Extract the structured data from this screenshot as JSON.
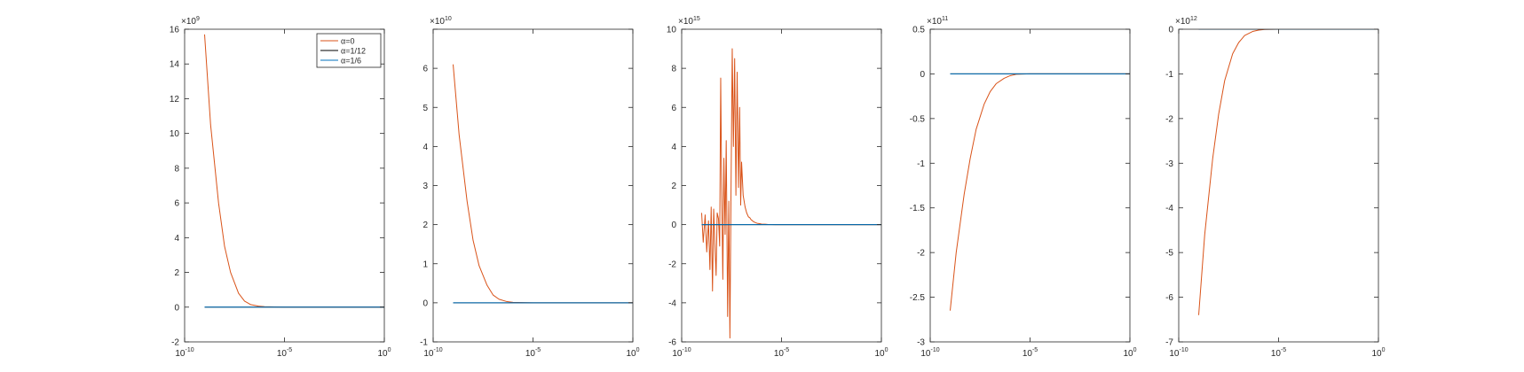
{
  "colors": {
    "axis": "#262626",
    "alpha0": "#D95319",
    "alpha1_12": "#000000",
    "alpha1_6": "#0072BD"
  },
  "chart_data": [
    {
      "type": "line",
      "xscale": "log",
      "xlim": [
        1e-10,
        1
      ],
      "xticks": [
        1e-10,
        1e-05,
        1
      ],
      "xtick_labels": [
        {
          "base": "10",
          "exp": "-10"
        },
        {
          "base": "10",
          "exp": "-5"
        },
        {
          "base": "10",
          "exp": "0"
        }
      ],
      "ylim": [
        -2,
        16
      ],
      "yticks": [
        -2,
        0,
        2,
        4,
        6,
        8,
        10,
        12,
        14,
        16
      ],
      "ytick_labels": [
        "-2",
        "0",
        "2",
        "4",
        "6",
        "8",
        "10",
        "12",
        "14",
        "16"
      ],
      "multiplier": {
        "prefix": "×",
        "base": "10",
        "exp": "9"
      },
      "legend": {
        "placement": "top-right",
        "entries": [
          "α=0",
          "α=1/12",
          "α=1/6"
        ]
      },
      "series": [
        {
          "name": "α=0",
          "color_key": "alpha0",
          "x": [
            1e-09,
            2e-09,
            5e-09,
            1e-08,
            2e-08,
            5e-08,
            1e-07,
            2e-07,
            5e-07,
            1e-06,
            1e-05,
            0.001,
            1
          ],
          "y": [
            15.7,
            10.5,
            6.0,
            3.5,
            2.0,
            0.8,
            0.35,
            0.15,
            0.06,
            0.03,
            0,
            0,
            0
          ]
        },
        {
          "name": "α=1/12",
          "color_key": "alpha1_12",
          "x": [
            1e-09,
            1
          ],
          "y": [
            0,
            0
          ]
        },
        {
          "name": "α=1/6",
          "color_key": "alpha1_6",
          "x": [
            1e-09,
            1
          ],
          "y": [
            0,
            0
          ]
        }
      ]
    },
    {
      "type": "line",
      "xscale": "log",
      "xlim": [
        1e-10,
        1
      ],
      "xticks": [
        1e-10,
        1e-05,
        1
      ],
      "xtick_labels": [
        {
          "base": "10",
          "exp": "-10"
        },
        {
          "base": "10",
          "exp": "-5"
        },
        {
          "base": "10",
          "exp": "0"
        }
      ],
      "ylim": [
        -1,
        7
      ],
      "yticks": [
        -1,
        0,
        1,
        2,
        3,
        4,
        5,
        6,
        7
      ],
      "ytick_labels": [
        "-1",
        "0",
        "1",
        "2",
        "3",
        "4",
        "5",
        "6",
        ""
      ],
      "multiplier": {
        "prefix": "×",
        "base": "10",
        "exp": "10"
      },
      "series": [
        {
          "name": "α=0",
          "color_key": "alpha0",
          "x": [
            1e-09,
            2e-09,
            5e-09,
            1e-08,
            2e-08,
            5e-08,
            1e-07,
            2e-07,
            5e-07,
            1e-06,
            1e-05,
            0.001,
            1
          ],
          "y": [
            6.1,
            4.3,
            2.6,
            1.6,
            0.95,
            0.45,
            0.2,
            0.09,
            0.03,
            0.01,
            0,
            0,
            0
          ]
        },
        {
          "name": "α=1/12",
          "color_key": "alpha1_12",
          "x": [
            1e-09,
            1
          ],
          "y": [
            0,
            0
          ]
        },
        {
          "name": "α=1/6",
          "color_key": "alpha1_6",
          "x": [
            1e-09,
            1
          ],
          "y": [
            0,
            0
          ]
        }
      ]
    },
    {
      "type": "line",
      "xscale": "log",
      "xlim": [
        1e-10,
        1
      ],
      "xticks": [
        1e-10,
        1e-05,
        1
      ],
      "xtick_labels": [
        {
          "base": "10",
          "exp": "-10"
        },
        {
          "base": "10",
          "exp": "-5"
        },
        {
          "base": "10",
          "exp": "0"
        }
      ],
      "ylim": [
        -6,
        10
      ],
      "yticks": [
        -6,
        -4,
        -2,
        0,
        2,
        4,
        6,
        8,
        10
      ],
      "ytick_labels": [
        "-6",
        "-4",
        "-2",
        "0",
        "2",
        "4",
        "6",
        "8",
        "10"
      ],
      "multiplier": {
        "prefix": "×",
        "base": "10",
        "exp": "15"
      },
      "series": [
        {
          "name": "α=0",
          "color_key": "alpha0",
          "x": [
            1e-09,
            1.2e-09,
            1.5e-09,
            1.8e-09,
            2.2e-09,
            2.6e-09,
            3e-09,
            3.5e-09,
            4e-09,
            4.6e-09,
            5.3e-09,
            6e-09,
            7e-09,
            8e-09,
            9e-09,
            1e-08,
            1.15e-08,
            1.3e-08,
            1.5e-08,
            1.7e-08,
            2e-08,
            2.3e-08,
            2.6e-08,
            3e-08,
            3.4e-08,
            3.9e-08,
            4.5e-08,
            5.2e-08,
            6e-08,
            7e-08,
            8e-08,
            9e-08,
            1e-07,
            1.2e-07,
            1.5e-07,
            1.8e-07,
            2.2e-07,
            2.6e-07,
            3e-07,
            3.5e-07,
            4e-07,
            5e-07,
            6e-07,
            8e-07,
            1e-06,
            1.5e-06,
            2e-06,
            3e-06,
            5e-06,
            1e-05,
            0.001,
            1
          ],
          "y": [
            0.6,
            -0.9,
            0.5,
            -1.4,
            0.2,
            -2.3,
            0.9,
            -3.4,
            0.8,
            -1.0,
            -2.6,
            0.6,
            0.3,
            -1.1,
            7.5,
            2.2,
            -2.8,
            3.4,
            -0.5,
            4.3,
            -4.7,
            1.2,
            -5.8,
            2.5,
            9.0,
            4.0,
            8.5,
            1.5,
            7.8,
            1.9,
            6.0,
            1.0,
            3.2,
            1.5,
            0.9,
            0.6,
            0.4,
            0.35,
            0.25,
            0.2,
            0.15,
            0.1,
            0.07,
            0.05,
            0.03,
            0.02,
            0.01,
            0.005,
            0,
            0,
            0,
            0
          ]
        },
        {
          "name": "α=1/12",
          "color_key": "alpha1_12",
          "x": [
            1e-09,
            1
          ],
          "y": [
            0,
            0
          ]
        },
        {
          "name": "α=1/6",
          "color_key": "alpha1_6",
          "x": [
            1e-09,
            1
          ],
          "y": [
            0,
            0
          ]
        }
      ]
    },
    {
      "type": "line",
      "xscale": "log",
      "xlim": [
        1e-10,
        1
      ],
      "xticks": [
        1e-10,
        1e-05,
        1
      ],
      "xtick_labels": [
        {
          "base": "10",
          "exp": "-10"
        },
        {
          "base": "10",
          "exp": "-5"
        },
        {
          "base": "10",
          "exp": "0"
        }
      ],
      "ylim": [
        -3,
        0.5
      ],
      "yticks": [
        -3,
        -2.5,
        -2,
        -1.5,
        -1,
        -0.5,
        0,
        0.5
      ],
      "ytick_labels": [
        "-3",
        "-2.5",
        "-2",
        "-1.5",
        "-1",
        "-0.5",
        "0",
        "0.5"
      ],
      "multiplier": {
        "prefix": "×",
        "base": "10",
        "exp": "11"
      },
      "series": [
        {
          "name": "α=0",
          "color_key": "alpha0",
          "x": [
            1e-09,
            2e-09,
            5e-09,
            1e-08,
            2e-08,
            5e-08,
            1e-07,
            2e-07,
            5e-07,
            1e-06,
            2e-06,
            1e-05,
            0.001,
            1
          ],
          "y": [
            -2.65,
            -2.0,
            -1.35,
            -0.95,
            -0.62,
            -0.34,
            -0.2,
            -0.11,
            -0.05,
            -0.02,
            -0.005,
            0,
            0,
            0
          ]
        },
        {
          "name": "α=1/12",
          "color_key": "alpha1_12",
          "x": [
            1e-09,
            1
          ],
          "y": [
            0,
            0
          ]
        },
        {
          "name": "α=1/6",
          "color_key": "alpha1_6",
          "x": [
            1e-09,
            1
          ],
          "y": [
            0,
            0
          ]
        }
      ]
    },
    {
      "type": "line",
      "xscale": "log",
      "xlim": [
        1e-10,
        1
      ],
      "xticks": [
        1e-10,
        1e-05,
        1
      ],
      "xtick_labels": [
        {
          "base": "10",
          "exp": "-10"
        },
        {
          "base": "10",
          "exp": "-5"
        },
        {
          "base": "10",
          "exp": "0"
        }
      ],
      "ylim": [
        -7,
        0
      ],
      "yticks": [
        -7,
        -6,
        -5,
        -4,
        -3,
        -2,
        -1,
        0
      ],
      "ytick_labels": [
        "-7",
        "-6",
        "-5",
        "-4",
        "-3",
        "-2",
        "-1",
        "0"
      ],
      "multiplier": {
        "prefix": "×",
        "base": "10",
        "exp": "12"
      },
      "series": [
        {
          "name": "α=0",
          "color_key": "alpha0",
          "x": [
            1e-09,
            2e-09,
            5e-09,
            1e-08,
            2e-08,
            5e-08,
            1e-07,
            2e-07,
            5e-07,
            1e-06,
            2e-06,
            1e-05,
            0.001,
            1
          ],
          "y": [
            -6.4,
            -4.6,
            -2.9,
            -1.9,
            -1.15,
            -0.55,
            -0.3,
            -0.14,
            -0.05,
            -0.02,
            -0.005,
            0,
            0,
            0
          ]
        },
        {
          "name": "α=1/12",
          "color_key": "alpha1_12",
          "x": [
            1e-09,
            1
          ],
          "y": [
            0,
            0
          ]
        },
        {
          "name": "α=1/6",
          "color_key": "alpha1_6",
          "x": [
            1e-09,
            1
          ],
          "y": [
            0,
            0
          ]
        }
      ]
    }
  ]
}
